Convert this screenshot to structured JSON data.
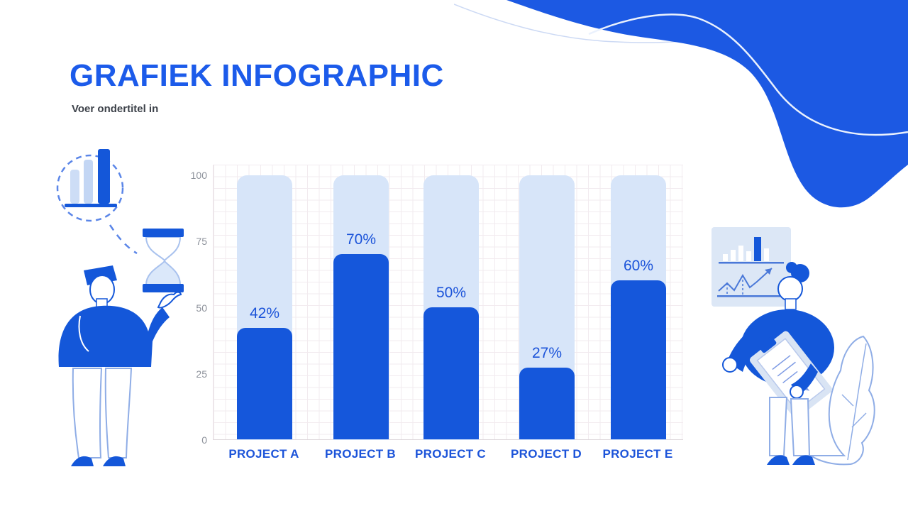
{
  "slide": {
    "title": "GRAFIEK INFOGRAPHIC",
    "subtitle": "Voer ondertitel in"
  },
  "chart_data": {
    "type": "bar",
    "title": "",
    "xlabel": "",
    "ylabel": "",
    "categories": [
      "PROJECT A",
      "PROJECT B",
      "PROJECT C",
      "PROJECT D",
      "PROJECT E"
    ],
    "values": [
      42,
      70,
      50,
      27,
      60
    ],
    "value_labels": [
      "42%",
      "70%",
      "50%",
      "27%",
      "60%"
    ],
    "track_value": 100,
    "y_ticks": [
      "100",
      "75",
      "50",
      "25",
      "0"
    ],
    "ylim": [
      0,
      100
    ],
    "grid": true,
    "legend": "none"
  },
  "colors": {
    "primary_blue": "#1457d9",
    "wave_blue": "#1c59e3",
    "title_blue": "#1c5bea",
    "label_blue": "#1b53d9",
    "bar_fill": "#1557db",
    "bar_track": "#d7e5f9",
    "panel_blue": "#dce7f6",
    "outline_blue": "#8fade6",
    "axis_text": "#8d929b"
  },
  "decor": {
    "icons": [
      "bar-chart-icon",
      "hourglass-icon",
      "analytics-board-icon",
      "trend-arrow-icon",
      "clipboard-icon",
      "plant-icon",
      "wave-shape"
    ]
  }
}
